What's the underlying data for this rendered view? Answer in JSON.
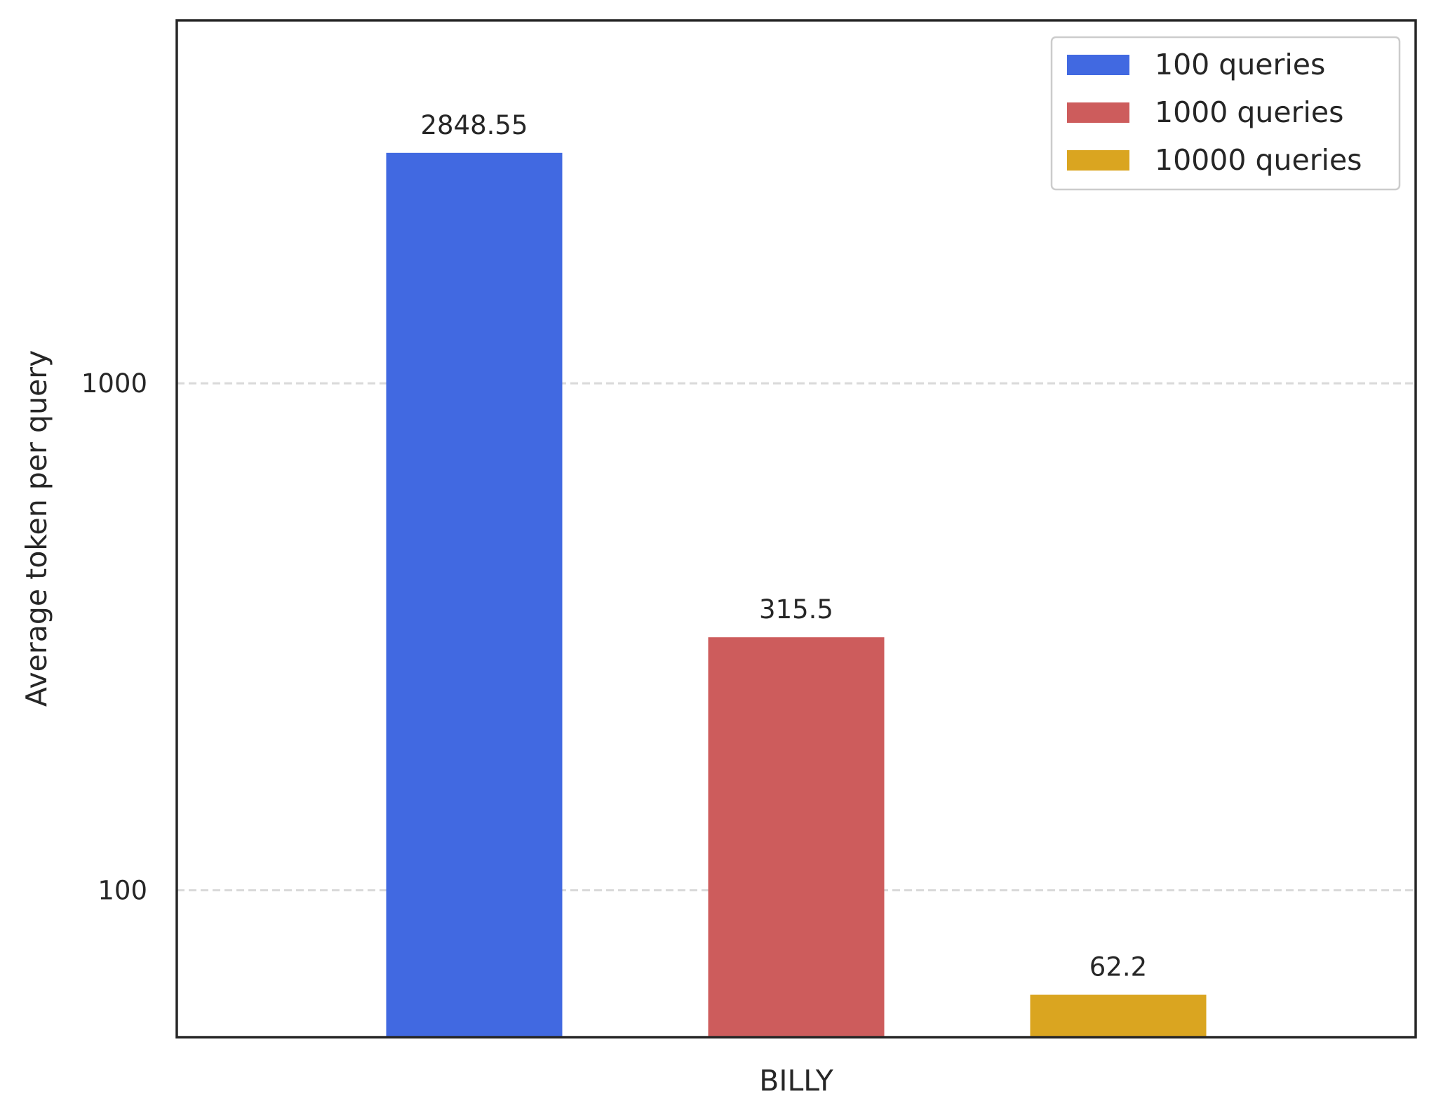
{
  "chart_data": {
    "type": "bar",
    "categories": [
      "BILLY"
    ],
    "series": [
      {
        "name": "100 queries",
        "values": [
          2848.55
        ],
        "color": "#4169e1"
      },
      {
        "name": "1000 queries",
        "values": [
          315.5
        ],
        "color": "#cd5c5c"
      },
      {
        "name": "10000 queries",
        "values": [
          62.2
        ],
        "color": "#daa520"
      }
    ],
    "data_labels": [
      "2848.55",
      "315.5",
      "62.2"
    ],
    "title": "",
    "xlabel": "",
    "ylabel": "Average token per query",
    "yscale": "log",
    "ylim": [
      51.3,
      5200
    ],
    "yticks": [
      100,
      1000
    ],
    "ytick_labels": [
      "100",
      "1000"
    ],
    "grid": "y-dashed",
    "legend_position": "top-right"
  }
}
